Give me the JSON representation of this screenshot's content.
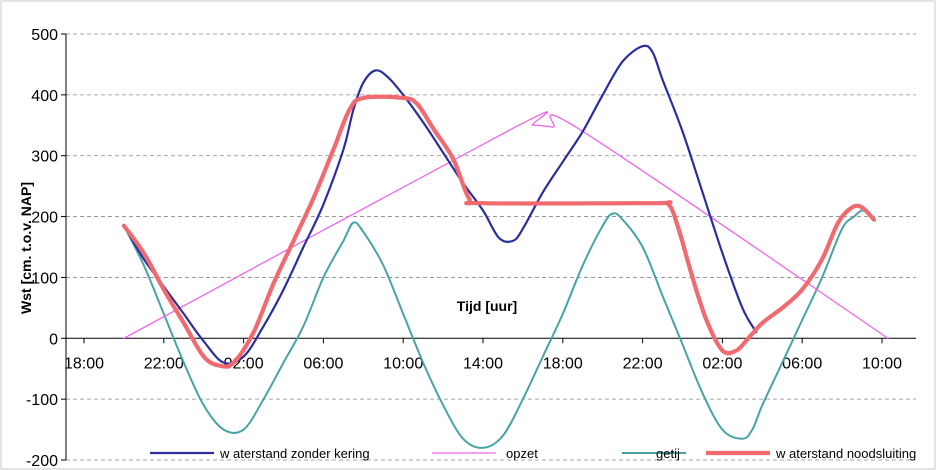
{
  "chart_data": {
    "type": "line",
    "title": "",
    "xlabel": "Tijd [uur]",
    "ylabel": "Wst [cm. t.o.v. NAP]",
    "ylim": [
      -200,
      500
    ],
    "xlim": [
      18,
      60
    ],
    "x_unit": "hours",
    "y_ticks": [
      "500",
      "400",
      "300",
      "200",
      "100",
      "0",
      "-100",
      "-200"
    ],
    "y_tick_values": [
      500,
      400,
      300,
      200,
      100,
      0,
      -100,
      -200
    ],
    "x_ticks": [
      "18:00",
      "22:00",
      "02:00",
      "06:00",
      "10:00",
      "14:00",
      "18:00",
      "22:00",
      "02:00",
      "06:00",
      "10:00"
    ],
    "x_tick_values": [
      18,
      22,
      26,
      30,
      34,
      38,
      42,
      46,
      50,
      54,
      58
    ],
    "grid": "horizontal-dashed",
    "legend_position": "bottom",
    "series": [
      {
        "name": "w aterstand zonder kering",
        "color": "#2b2f9e",
        "width": 2.2,
        "points": [
          [
            20,
            185
          ],
          [
            21,
            130
          ],
          [
            22,
            85
          ],
          [
            23,
            40
          ],
          [
            24,
            -5
          ],
          [
            25,
            -40
          ],
          [
            26,
            -30
          ],
          [
            27,
            20
          ],
          [
            28,
            80
          ],
          [
            29,
            150
          ],
          [
            30,
            220
          ],
          [
            31,
            310
          ],
          [
            31.5,
            375
          ],
          [
            32,
            420
          ],
          [
            32.6,
            440
          ],
          [
            33.2,
            430
          ],
          [
            34,
            400
          ],
          [
            35,
            355
          ],
          [
            36,
            305
          ],
          [
            37,
            255
          ],
          [
            38,
            210
          ],
          [
            38.8,
            165
          ],
          [
            39.5,
            160
          ],
          [
            40,
            180
          ],
          [
            41,
            240
          ],
          [
            42,
            290
          ],
          [
            43,
            340
          ],
          [
            44,
            400
          ],
          [
            45,
            455
          ],
          [
            46,
            480
          ],
          [
            46.5,
            470
          ],
          [
            47,
            425
          ],
          [
            48,
            340
          ],
          [
            49,
            240
          ],
          [
            50,
            140
          ],
          [
            51,
            50
          ],
          [
            51.7,
            10
          ]
        ]
      },
      {
        "name": "opzet",
        "color": "#ee66ee",
        "width": 1.3,
        "points": [
          [
            20,
            0
          ],
          [
            39.5,
            345
          ],
          [
            40.5,
            350
          ],
          [
            41.5,
            347
          ],
          [
            43,
            340
          ],
          [
            58.3,
            0
          ]
        ]
      },
      {
        "name": "getij",
        "color": "#4aa3a3",
        "width": 2.0,
        "points": [
          [
            20,
            185
          ],
          [
            21,
            120
          ],
          [
            22,
            40
          ],
          [
            23,
            -40
          ],
          [
            24,
            -110
          ],
          [
            25,
            -150
          ],
          [
            26,
            -150
          ],
          [
            27,
            -100
          ],
          [
            28,
            -40
          ],
          [
            29,
            20
          ],
          [
            30,
            100
          ],
          [
            31,
            160
          ],
          [
            31.5,
            190
          ],
          [
            32,
            175
          ],
          [
            33,
            120
          ],
          [
            34,
            40
          ],
          [
            35,
            -40
          ],
          [
            36,
            -110
          ],
          [
            37,
            -165
          ],
          [
            38,
            -180
          ],
          [
            39,
            -160
          ],
          [
            40,
            -100
          ],
          [
            41,
            -30
          ],
          [
            42,
            40
          ],
          [
            43,
            120
          ],
          [
            44,
            185
          ],
          [
            44.5,
            205
          ],
          [
            45,
            195
          ],
          [
            46,
            150
          ],
          [
            47,
            70
          ],
          [
            48,
            -10
          ],
          [
            49,
            -90
          ],
          [
            50,
            -150
          ],
          [
            51,
            -165
          ],
          [
            51.5,
            -150
          ],
          [
            52,
            -110
          ],
          [
            53,
            -40
          ],
          [
            54,
            30
          ],
          [
            55,
            100
          ],
          [
            56,
            180
          ],
          [
            56.6,
            200
          ],
          [
            57,
            210
          ],
          [
            57.4,
            205
          ]
        ]
      },
      {
        "name": "w aterstand noodsluiting",
        "color": "#f06a70",
        "width": 4.2,
        "points": [
          [
            20,
            185
          ],
          [
            21,
            140
          ],
          [
            22,
            80
          ],
          [
            23,
            25
          ],
          [
            24,
            -30
          ],
          [
            24.8,
            -45
          ],
          [
            25.5,
            -40
          ],
          [
            26.5,
            10
          ],
          [
            27.5,
            90
          ],
          [
            28.5,
            160
          ],
          [
            29.5,
            230
          ],
          [
            30.5,
            310
          ],
          [
            31.3,
            375
          ],
          [
            32,
            395
          ],
          [
            34,
            395
          ],
          [
            34.7,
            385
          ],
          [
            35.5,
            345
          ],
          [
            36.5,
            295
          ],
          [
            37.3,
            230
          ],
          [
            38,
            222
          ],
          [
            46.5,
            222
          ],
          [
            47.3,
            220
          ],
          [
            47.8,
            180
          ],
          [
            48.5,
            100
          ],
          [
            49.2,
            30
          ],
          [
            50,
            -20
          ],
          [
            50.7,
            -20
          ],
          [
            51.3,
            0
          ],
          [
            52,
            25
          ],
          [
            53,
            50
          ],
          [
            54,
            80
          ],
          [
            55,
            130
          ],
          [
            55.8,
            190
          ],
          [
            56.5,
            215
          ],
          [
            57,
            215
          ],
          [
            57.6,
            195
          ]
        ]
      }
    ]
  }
}
